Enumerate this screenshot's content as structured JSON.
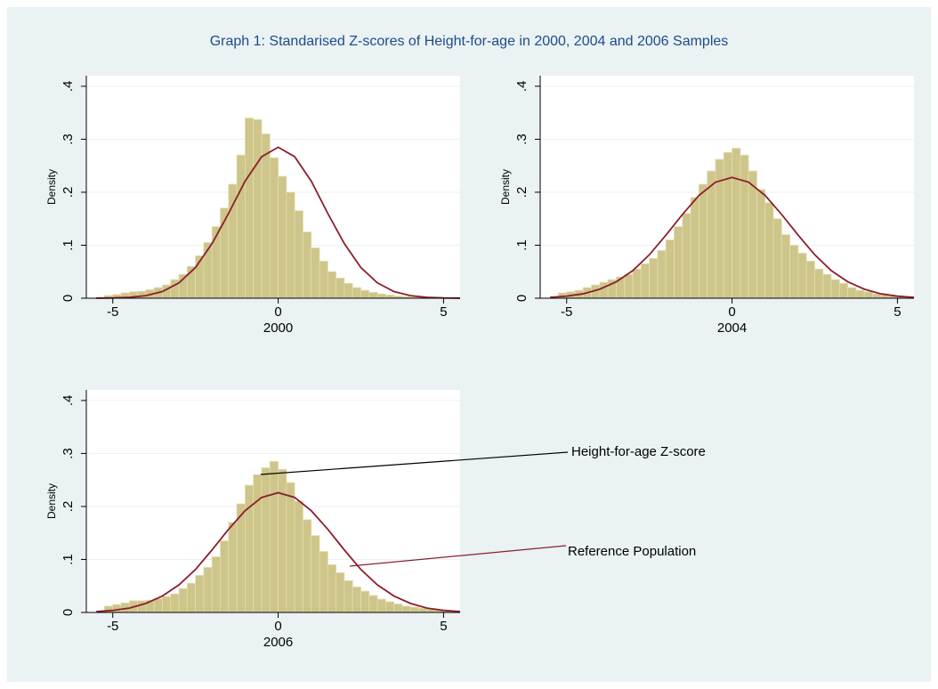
{
  "title": "Graph 1: Standarised Z-scores of Height-for-age in 2000, 2004 and 2006 Samples",
  "chart_data": [
    {
      "type": "histogram",
      "xlabel": "2000",
      "ylabel": "Density",
      "color": "#cdc58a",
      "grid": true,
      "xlim": [
        -5.8,
        5.5
      ],
      "ylim": [
        0,
        0.42
      ],
      "xticks": [
        -5,
        0,
        5
      ],
      "yticks": [
        0,
        {
          "value": 0.1,
          "label": ".1"
        },
        {
          "value": 0.2,
          "label": ".2"
        },
        {
          "value": 0.3,
          "label": ".3"
        },
        {
          "value": 0.4,
          "label": ".4"
        }
      ],
      "bins": [
        -5.25,
        -5,
        -4.75,
        -4.5,
        -4.25,
        -4,
        -3.75,
        -3.5,
        -3.25,
        -3,
        -2.75,
        -2.5,
        -2.25,
        -2,
        -1.75,
        -1.5,
        -1.25,
        -1,
        -0.75,
        -0.5,
        -0.25,
        0,
        0.25,
        0.5,
        0.75,
        1,
        1.25,
        1.5,
        1.75,
        2,
        2.25,
        2.5,
        2.75,
        3,
        3.25,
        3.5,
        3.75,
        4,
        4.25,
        4.5,
        4.75,
        5,
        5.25
      ],
      "values": [
        0.005,
        0.007,
        0.01,
        0.012,
        0.013,
        0.016,
        0.02,
        0.025,
        0.035,
        0.045,
        0.06,
        0.08,
        0.105,
        0.135,
        0.17,
        0.215,
        0.27,
        0.34,
        0.337,
        0.31,
        0.265,
        0.23,
        0.2,
        0.165,
        0.125,
        0.095,
        0.07,
        0.05,
        0.038,
        0.028,
        0.02,
        0.015,
        0.011,
        0.008,
        0.006,
        0.004,
        0.003,
        0.002,
        0.002,
        0.001,
        0.001,
        0.001
      ],
      "curve": {
        "color": "#8b1f2e",
        "x": [
          -5.5,
          -5,
          -4.5,
          -4,
          -3.5,
          -3,
          -2.5,
          -2,
          -1.5,
          -1,
          -0.5,
          0,
          0.5,
          1,
          1.5,
          2,
          2.5,
          3,
          3.5,
          4,
          4.5,
          5,
          5.5
        ],
        "values": [
          0.0001,
          0.0005,
          0.0016,
          0.0048,
          0.0125,
          0.029,
          0.058,
          0.103,
          0.16,
          0.221,
          0.267,
          0.285,
          0.267,
          0.221,
          0.16,
          0.103,
          0.058,
          0.029,
          0.0125,
          0.0048,
          0.0016,
          0.0005,
          0.0001
        ]
      }
    },
    {
      "type": "histogram",
      "xlabel": "2004",
      "ylabel": "Density",
      "color": "#cdc58a",
      "grid": true,
      "xlim": [
        -5.8,
        5.5
      ],
      "ylim": [
        0,
        0.42
      ],
      "xticks": [
        -5,
        0,
        5
      ],
      "yticks": [
        0,
        {
          "value": 0.1,
          "label": ".1"
        },
        {
          "value": 0.2,
          "label": ".2"
        },
        {
          "value": 0.3,
          "label": ".3"
        },
        {
          "value": 0.4,
          "label": ".4"
        }
      ],
      "bins": [
        -5.25,
        -5,
        -4.75,
        -4.5,
        -4.25,
        -4,
        -3.75,
        -3.5,
        -3.25,
        -3,
        -2.75,
        -2.5,
        -2.25,
        -2,
        -1.75,
        -1.5,
        -1.25,
        -1,
        -0.75,
        -0.5,
        -0.25,
        0,
        0.25,
        0.5,
        0.75,
        1,
        1.25,
        1.5,
        1.75,
        2,
        2.25,
        2.5,
        2.75,
        3,
        3.25,
        3.5,
        3.75,
        4,
        4.25,
        4.5,
        4.75,
        5,
        5.25
      ],
      "values": [
        0.01,
        0.012,
        0.015,
        0.02,
        0.025,
        0.03,
        0.035,
        0.04,
        0.045,
        0.055,
        0.065,
        0.075,
        0.09,
        0.11,
        0.135,
        0.16,
        0.19,
        0.215,
        0.24,
        0.262,
        0.275,
        0.283,
        0.27,
        0.24,
        0.205,
        0.18,
        0.15,
        0.12,
        0.1,
        0.085,
        0.07,
        0.055,
        0.045,
        0.035,
        0.028,
        0.02,
        0.015,
        0.012,
        0.008,
        0.006,
        0.004,
        0.003
      ],
      "curve": {
        "color": "#8b1f2e",
        "x": [
          -5.5,
          -5,
          -4.5,
          -4,
          -3.5,
          -3,
          -2.5,
          -2,
          -1.5,
          -1,
          -0.5,
          0,
          0.5,
          1,
          1.5,
          2,
          2.5,
          3,
          3.5,
          4,
          4.5,
          5,
          5.5
        ],
        "values": [
          0.0016,
          0.0039,
          0.0083,
          0.017,
          0.031,
          0.052,
          0.082,
          0.119,
          0.158,
          0.194,
          0.219,
          0.228,
          0.219,
          0.194,
          0.158,
          0.119,
          0.082,
          0.052,
          0.031,
          0.017,
          0.0083,
          0.0039,
          0.0016
        ]
      }
    },
    {
      "type": "histogram",
      "xlabel": "2006",
      "ylabel": "Density",
      "color": "#cdc58a",
      "grid": true,
      "xlim": [
        -5.8,
        5.5
      ],
      "ylim": [
        0,
        0.42
      ],
      "xticks": [
        -5,
        0,
        5
      ],
      "yticks": [
        0,
        {
          "value": 0.1,
          "label": ".1"
        },
        {
          "value": 0.2,
          "label": ".2"
        },
        {
          "value": 0.3,
          "label": ".3"
        },
        {
          "value": 0.4,
          "label": ".4"
        }
      ],
      "bins": [
        -5.25,
        -5,
        -4.75,
        -4.5,
        -4.25,
        -4,
        -3.75,
        -3.5,
        -3.25,
        -3,
        -2.75,
        -2.5,
        -2.25,
        -2,
        -1.75,
        -1.5,
        -1.25,
        -1,
        -0.75,
        -0.5,
        -0.25,
        0,
        0.25,
        0.5,
        0.75,
        1,
        1.25,
        1.5,
        1.75,
        2,
        2.25,
        2.5,
        2.75,
        3,
        3.25,
        3.5,
        3.75,
        4,
        4.25,
        4.5,
        4.75,
        5,
        5.25
      ],
      "values": [
        0.012,
        0.015,
        0.018,
        0.022,
        0.022,
        0.023,
        0.026,
        0.03,
        0.035,
        0.045,
        0.055,
        0.07,
        0.085,
        0.105,
        0.135,
        0.17,
        0.205,
        0.24,
        0.26,
        0.273,
        0.285,
        0.27,
        0.245,
        0.21,
        0.175,
        0.145,
        0.115,
        0.09,
        0.075,
        0.06,
        0.048,
        0.04,
        0.032,
        0.025,
        0.02,
        0.016,
        0.012,
        0.01,
        0.008,
        0.006,
        0.005,
        0.004
      ],
      "curve": {
        "color": "#8b1f2e",
        "x": [
          -5.5,
          -5,
          -4.5,
          -4,
          -3.5,
          -3,
          -2.5,
          -2,
          -1.5,
          -1,
          -0.5,
          0,
          0.5,
          1,
          1.5,
          2,
          2.5,
          3,
          3.5,
          4,
          4.5,
          5,
          5.5
        ],
        "values": [
          0.0016,
          0.0039,
          0.0082,
          0.017,
          0.031,
          0.052,
          0.081,
          0.118,
          0.157,
          0.192,
          0.217,
          0.226,
          0.217,
          0.192,
          0.157,
          0.118,
          0.081,
          0.052,
          0.031,
          0.017,
          0.0082,
          0.0039,
          0.0016
        ]
      },
      "annotations": [
        "Height-for-age Z-score",
        "Reference Population"
      ]
    }
  ]
}
